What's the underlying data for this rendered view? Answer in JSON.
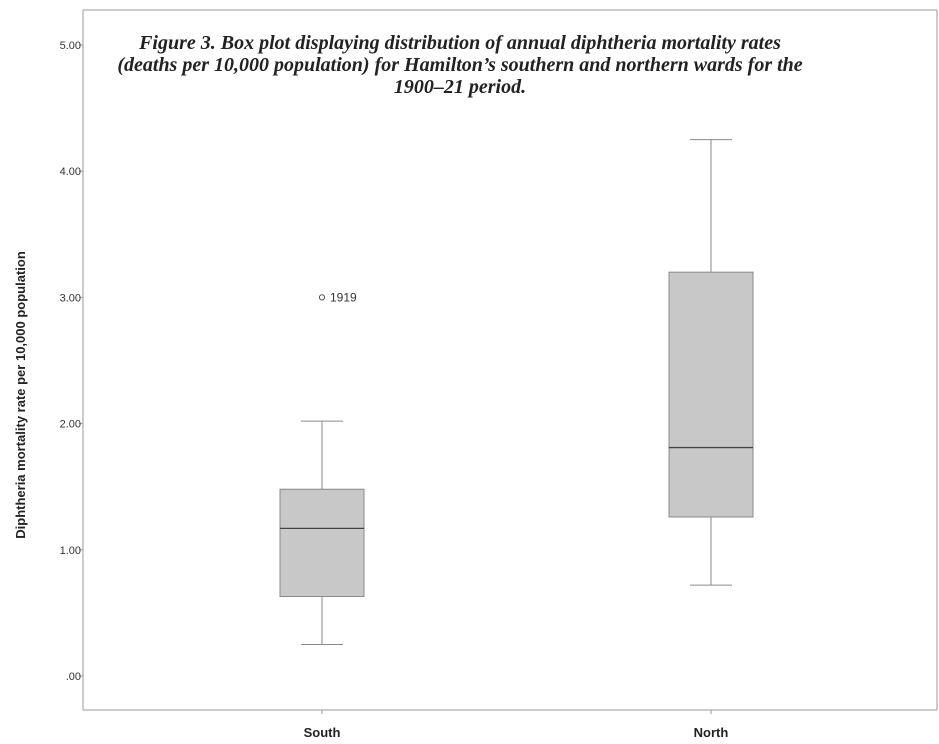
{
  "caption": "Figure 3. Box plot displaying distribution of annual diphtheria mortality rates (deaths per 10,000 population) for Hamilton’s southern and northern wards for the 1900–21 period.",
  "chart_data": {
    "type": "boxplot",
    "ylabel": "Diphtheria mortality rate per 10,000 population",
    "xlabel": "",
    "ylim": [
      0,
      5
    ],
    "yticks": [
      0,
      1,
      2,
      3,
      4,
      5
    ],
    "ytick_labels": [
      ".00",
      "1.00",
      "2.00",
      "3.00",
      "4.00",
      "5.00"
    ],
    "grid": false,
    "categories": [
      "South",
      "North"
    ],
    "boxes": [
      {
        "category": "South",
        "min": 0.25,
        "q1": 0.63,
        "median": 1.17,
        "q3": 1.48,
        "max": 2.02,
        "outliers": [
          {
            "value": 3.0,
            "label": "1919"
          }
        ]
      },
      {
        "category": "North",
        "min": 0.72,
        "q1": 1.26,
        "median": 1.81,
        "q3": 3.2,
        "max": 4.25,
        "outliers": []
      }
    ],
    "colors": {
      "box_fill": "#c8c8c8",
      "box_stroke": "#8a8a8a",
      "whisker": "#8a8a8a",
      "median": "#444444",
      "axis": "#9a9a9a"
    }
  }
}
